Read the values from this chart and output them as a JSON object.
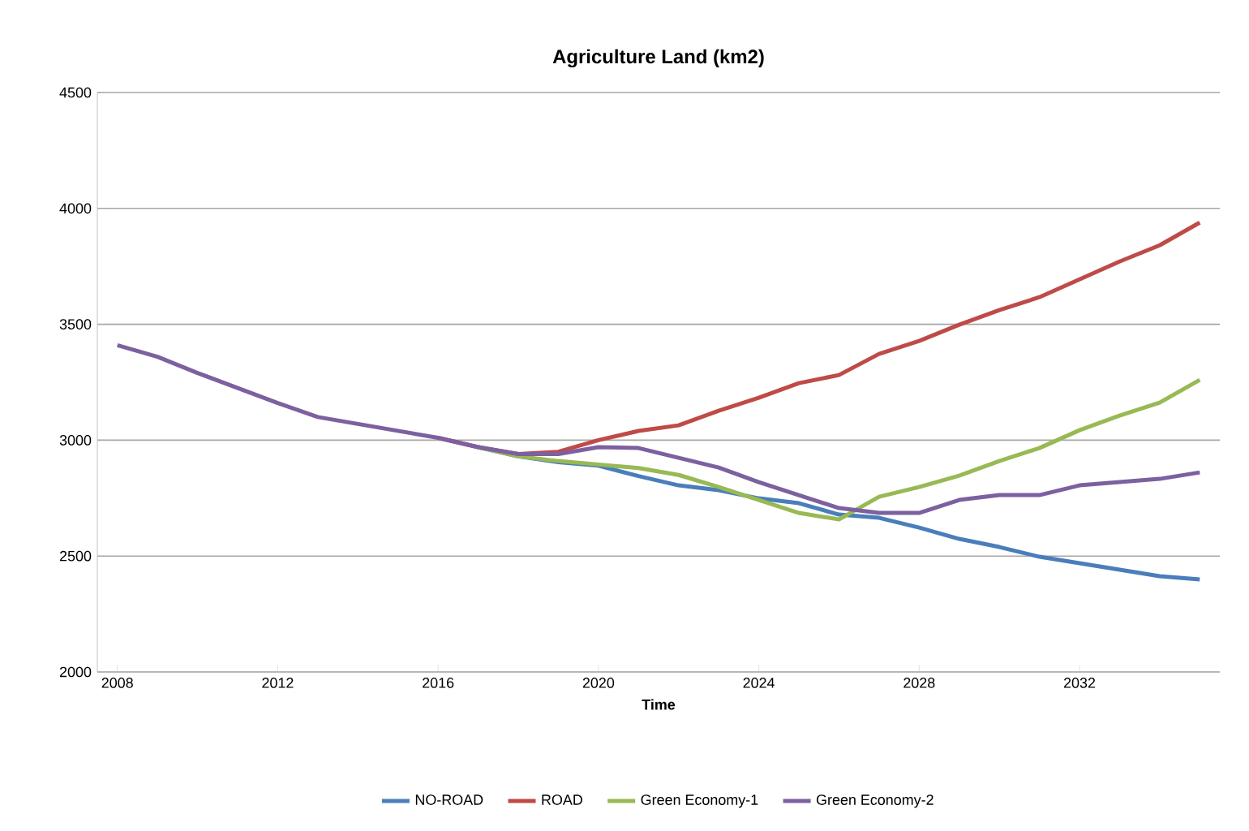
{
  "chart_data": {
    "type": "line",
    "title": "Agriculture Land (km2)",
    "xlabel": "Time",
    "x": [
      2008,
      2009,
      2010,
      2011,
      2012,
      2013,
      2014,
      2015,
      2016,
      2017,
      2018,
      2019,
      2020,
      2021,
      2022,
      2023,
      2024,
      2025,
      2026,
      2027,
      2028,
      2029,
      2030,
      2031,
      2032,
      2033,
      2034,
      2035
    ],
    "series": [
      {
        "name": "NO-ROAD",
        "color": "#4a7ebb",
        "values": [
          null,
          null,
          null,
          null,
          null,
          null,
          null,
          null,
          null,
          2970,
          2930,
          2905,
          2890,
          2845,
          2805,
          2784,
          2749,
          2728,
          2679,
          2665,
          2623,
          2574,
          2539,
          2497,
          2469,
          2441,
          2413,
          2399
        ]
      },
      {
        "name": "ROAD",
        "color": "#be4b48",
        "values": [
          null,
          null,
          null,
          null,
          null,
          null,
          null,
          null,
          3010,
          2970,
          2940,
          2950,
          3000,
          3040,
          3064,
          3127,
          3183,
          3246,
          3281,
          3372,
          3428,
          3498,
          3561,
          3617,
          3694,
          3771,
          3841,
          3939
        ]
      },
      {
        "name": "Green Economy-1",
        "color": "#98b954",
        "values": [
          null,
          null,
          null,
          null,
          null,
          null,
          null,
          null,
          null,
          2970,
          2930,
          2910,
          2895,
          2880,
          2850,
          2798,
          2742,
          2686,
          2658,
          2756,
          2798,
          2847,
          2910,
          2966,
          3043,
          3106,
          3162,
          3260
        ]
      },
      {
        "name": "Green Economy-2",
        "color": "#7d60a0",
        "values": [
          3410,
          3360,
          3290,
          3225,
          3160,
          3100,
          3070,
          3040,
          3010,
          2970,
          2940,
          2940,
          2970,
          2966,
          2924,
          2882,
          2819,
          2763,
          2707,
          2686,
          2686,
          2742,
          2763,
          2763,
          2805,
          2819,
          2833,
          2861
        ]
      }
    ],
    "xlim": [
      2007.5,
      2035.5
    ],
    "xticks": [
      2008,
      2012,
      2016,
      2020,
      2024,
      2028,
      2032
    ],
    "ylim": [
      2000,
      4500
    ],
    "yticks": [
      2000,
      2500,
      3000,
      3500,
      4000,
      4500
    ],
    "grid": "y",
    "legend": "bottom",
    "marker": "none",
    "line_style": "solid"
  }
}
